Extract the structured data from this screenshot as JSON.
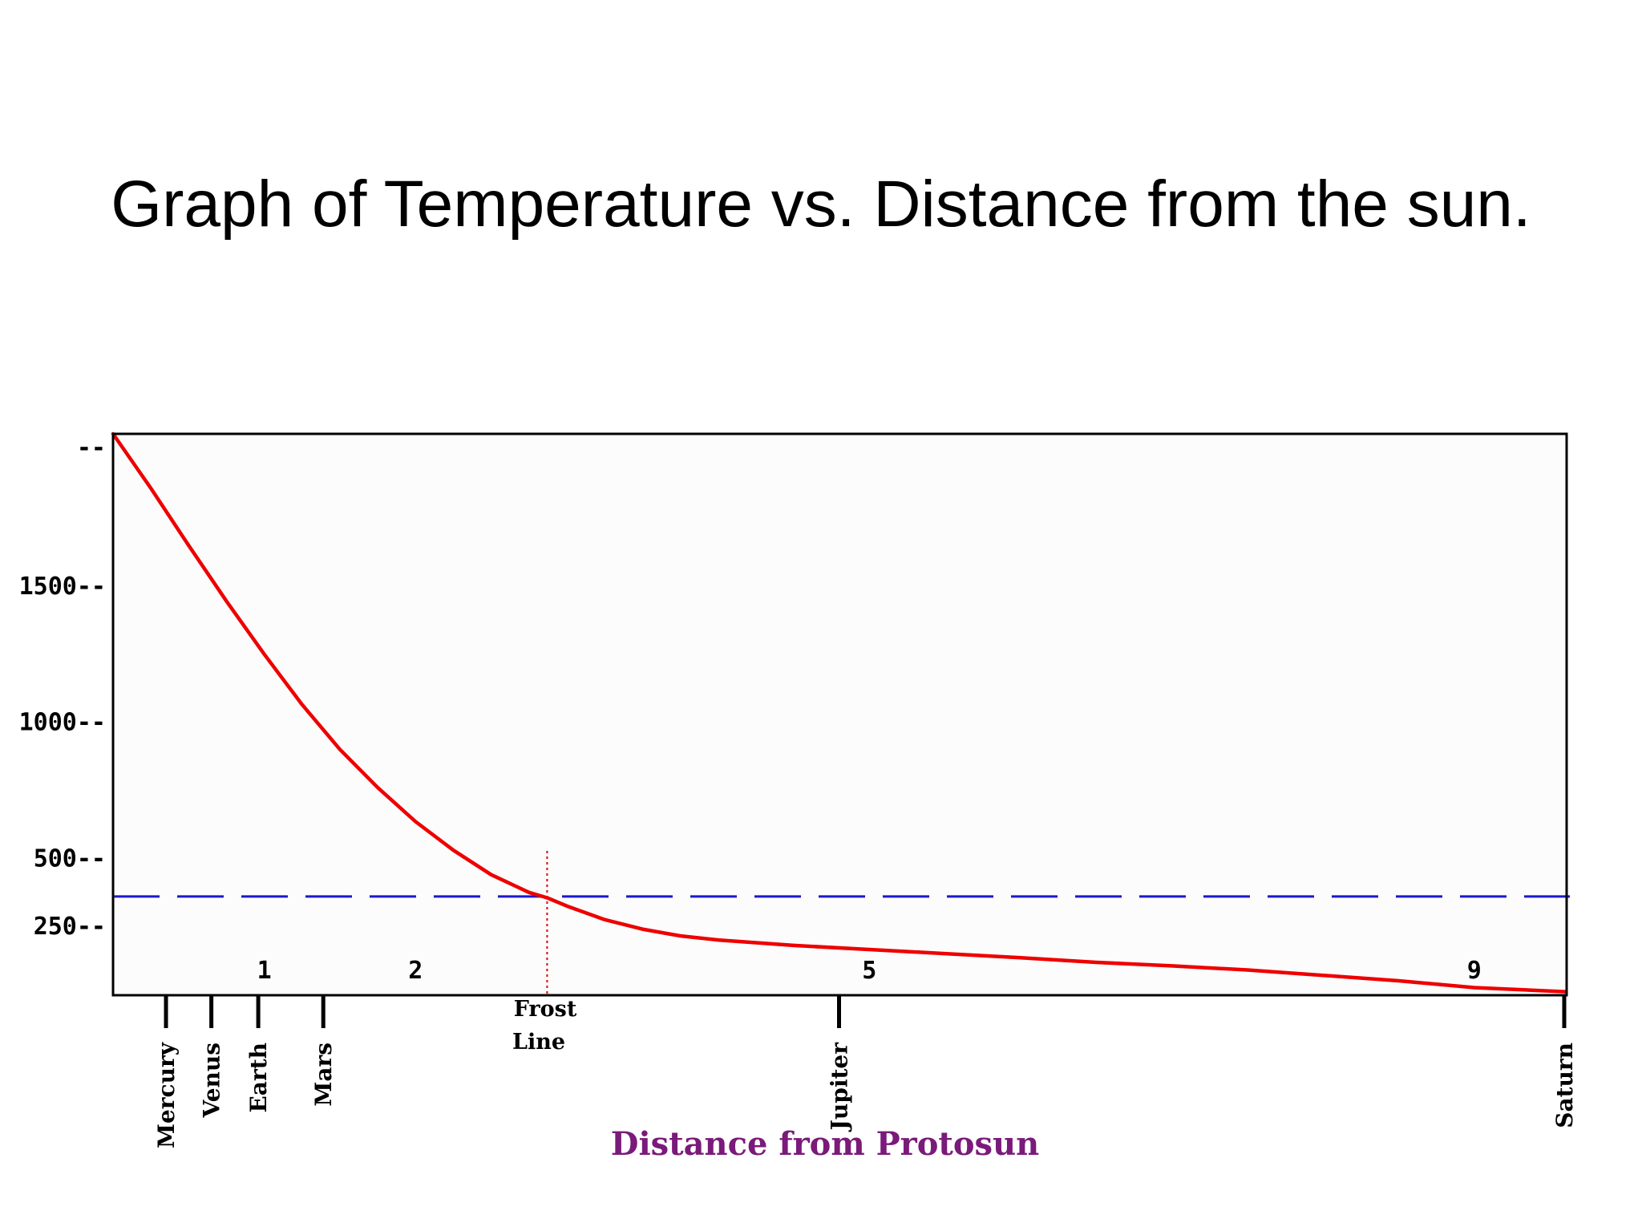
{
  "slide": {
    "title": "Graph of Temperature vs. Distance from the sun."
  },
  "chart_data": {
    "type": "line",
    "title": "",
    "xlabel": "Distance from Protosun",
    "ylabel": "",
    "xlim": [
      0,
      9.6
    ],
    "ylim": [
      0,
      2060
    ],
    "y_tick_labels": [
      {
        "value": 2010,
        "label": "--"
      },
      {
        "value": 1500,
        "label": "1500--"
      },
      {
        "value": 1000,
        "label": "1000--"
      },
      {
        "value": 500,
        "label": "500--"
      },
      {
        "value": 250,
        "label": "250--"
      }
    ],
    "x_distance_labels": [
      {
        "x": 1,
        "label": "1"
      },
      {
        "x": 2,
        "label": "2"
      },
      {
        "x": 5,
        "label": "5"
      },
      {
        "x": 9,
        "label": "9"
      }
    ],
    "planets": [
      {
        "name": "Mercury",
        "x": 0.35
      },
      {
        "name": "Venus",
        "x": 0.65
      },
      {
        "name": "Earth",
        "x": 0.96
      },
      {
        "name": "Mars",
        "x": 1.39
      },
      {
        "name": "Jupiter",
        "x": 4.8
      },
      {
        "name": "Saturn",
        "x": 9.6
      }
    ],
    "frost_line": {
      "x": 2.87,
      "label_line1": "Frost",
      "label_line2": "Line",
      "color": "#dd0000"
    },
    "threshold": {
      "y": 360,
      "color": "#1a1acc"
    },
    "series": [
      {
        "color": "#ee0000",
        "points": [
          [
            0,
            2060
          ],
          [
            0.25,
            1860
          ],
          [
            0.5,
            1650
          ],
          [
            0.75,
            1445
          ],
          [
            1.0,
            1250
          ],
          [
            1.25,
            1065
          ],
          [
            1.5,
            900
          ],
          [
            1.75,
            760
          ],
          [
            2.0,
            635
          ],
          [
            2.25,
            530
          ],
          [
            2.5,
            440
          ],
          [
            2.75,
            375
          ],
          [
            2.87,
            355
          ],
          [
            3.0,
            325
          ],
          [
            3.25,
            275
          ],
          [
            3.5,
            240
          ],
          [
            3.75,
            215
          ],
          [
            4.0,
            200
          ],
          [
            4.5,
            180
          ],
          [
            5.0,
            165
          ],
          [
            5.5,
            150
          ],
          [
            6.0,
            135
          ],
          [
            6.5,
            118
          ],
          [
            7.0,
            105
          ],
          [
            7.5,
            90
          ],
          [
            8.0,
            70
          ],
          [
            8.5,
            50
          ],
          [
            9.0,
            25
          ],
          [
            9.6,
            10
          ]
        ]
      }
    ],
    "grid": false
  }
}
